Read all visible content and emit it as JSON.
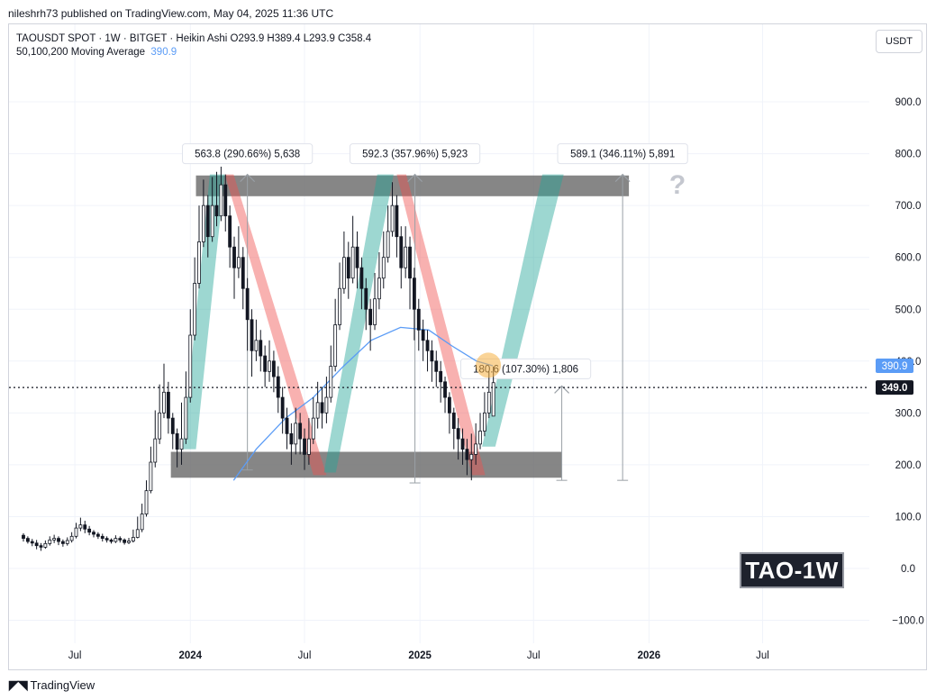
{
  "header": {
    "publisher_line": "nileshrh73 published on TradingView.com, May 04, 2025 11:36 UTC"
  },
  "legend": {
    "symbol_line": "TAOUSDT SPOT · 1W · BITGET · Heikin Ashi  O293.9  H389.4  L293.9  C358.4",
    "ma_label": "50,100,200 Moving Average",
    "ma_value": "390.9"
  },
  "currency_button": "USDT",
  "badge": "TAO-1W",
  "footer": {
    "brand": "TradingView",
    "logo_icon": "tradingview-logo-icon"
  },
  "colors": {
    "bull": "#26a69a",
    "bear": "#ef5350",
    "candle_up": "#ffffff",
    "candle_down": "#131722",
    "ma": "#5b9cf6",
    "zone": "#6b6b6b",
    "highlight": "#f5b041"
  },
  "chart_data": {
    "type": "candlestick",
    "style": "Heikin Ashi",
    "interval": "1W",
    "y_axis": {
      "ticks": [
        "900.0",
        "800.0",
        "700.0",
        "600.0",
        "500.0",
        "400.0",
        "300.0",
        "200.0",
        "100.0",
        "0.0",
        "−100.0"
      ],
      "range": [
        -110,
        1000
      ]
    },
    "x_axis": {
      "ticks": [
        "Jul",
        "2024",
        "Jul",
        "2025",
        "Jul",
        "2026",
        "Jul"
      ]
    },
    "price_labels": {
      "ma_price": "390.9",
      "last_price": "349.0"
    },
    "last_price": 349.0,
    "ma_value": 390.9,
    "zones": [
      {
        "name": "resistance",
        "low": 718,
        "high": 758,
        "x_start": "2024-01-10",
        "x_end": "2025-11-30"
      },
      {
        "name": "support",
        "low": 175,
        "high": 225,
        "x_start": "2023-12-01",
        "x_end": "2025-08-15"
      }
    ],
    "measurements": [
      {
        "label": "563.8 (290.66%) 5,638",
        "x": "2024-04-01",
        "from": 190,
        "to": 760
      },
      {
        "label": "592.3 (357.96%) 5,923",
        "x": "2024-12-24",
        "from": 165,
        "to": 760
      },
      {
        "label": "589.1 (346.11%) 5,891",
        "x": "2025-11-20",
        "from": 170,
        "to": 760
      },
      {
        "label": "180.6 (107.30%) 1,806",
        "x": "2025-08-15",
        "from": 170,
        "to": 352
      }
    ],
    "question_mark": "?",
    "trend_bands": [
      {
        "kind": "up",
        "points": [
          [
            "2023-12-20",
            230
          ],
          [
            "2024-02-01",
            760
          ],
          [
            "2024-02-25",
            760
          ],
          [
            "2024-01-10",
            230
          ]
        ]
      },
      {
        "kind": "down",
        "points": [
          [
            "2024-02-25",
            760
          ],
          [
            "2024-07-15",
            180
          ],
          [
            "2024-08-05",
            180
          ],
          [
            "2024-03-10",
            760
          ]
        ]
      },
      {
        "kind": "up",
        "points": [
          [
            "2024-08-01",
            185
          ],
          [
            "2024-10-25",
            760
          ],
          [
            "2024-11-20",
            760
          ],
          [
            "2024-08-20",
            185
          ]
        ]
      },
      {
        "kind": "down",
        "points": [
          [
            "2024-11-25",
            760
          ],
          [
            "2025-03-25",
            180
          ],
          [
            "2025-04-15",
            180
          ],
          [
            "2024-12-10",
            760
          ]
        ]
      },
      {
        "kind": "up",
        "points": [
          [
            "2025-04-10",
            235
          ],
          [
            "2025-07-15",
            760
          ],
          [
            "2025-08-18",
            760
          ],
          [
            "2025-05-01",
            235
          ]
        ]
      }
    ],
    "highlight_circle": {
      "x": "2025-04-20",
      "y": 392
    },
    "ma_line": [
      [
        "2024-03-10",
        170
      ],
      [
        "2024-04-15",
        230
      ],
      [
        "2024-06-01",
        290
      ],
      [
        "2024-07-15",
        330
      ],
      [
        "2024-09-01",
        390
      ],
      [
        "2024-10-15",
        440
      ],
      [
        "2024-12-01",
        465
      ],
      [
        "2025-01-15",
        460
      ],
      [
        "2025-02-20",
        430
      ],
      [
        "2025-04-01",
        400
      ],
      [
        "2025-04-27",
        391
      ]
    ],
    "candles": [
      [
        "2023-04-10",
        64,
        58,
        68,
        52
      ],
      [
        "2023-04-17",
        58,
        52,
        62,
        48
      ],
      [
        "2023-04-24",
        52,
        49,
        57,
        43
      ],
      [
        "2023-05-01",
        49,
        44,
        55,
        37
      ],
      [
        "2023-05-08",
        44,
        41,
        49,
        34
      ],
      [
        "2023-05-15",
        41,
        48,
        54,
        38
      ],
      [
        "2023-05-22",
        48,
        55,
        62,
        44
      ],
      [
        "2023-05-29",
        55,
        58,
        65,
        49
      ],
      [
        "2023-06-05",
        58,
        52,
        62,
        45
      ],
      [
        "2023-06-12",
        52,
        48,
        56,
        42
      ],
      [
        "2023-06-19",
        48,
        54,
        60,
        44
      ],
      [
        "2023-06-26",
        54,
        62,
        70,
        50
      ],
      [
        "2023-07-03",
        62,
        78,
        88,
        58
      ],
      [
        "2023-07-10",
        78,
        84,
        98,
        72
      ],
      [
        "2023-07-17",
        84,
        76,
        92,
        68
      ],
      [
        "2023-07-24",
        76,
        70,
        82,
        64
      ],
      [
        "2023-07-31",
        70,
        66,
        74,
        60
      ],
      [
        "2023-08-07",
        66,
        62,
        70,
        57
      ],
      [
        "2023-08-14",
        62,
        58,
        67,
        52
      ],
      [
        "2023-08-21",
        58,
        55,
        62,
        50
      ],
      [
        "2023-08-28",
        55,
        52,
        58,
        48
      ],
      [
        "2023-09-04",
        52,
        58,
        64,
        49
      ],
      [
        "2023-09-11",
        58,
        55,
        62,
        50
      ],
      [
        "2023-09-18",
        55,
        50,
        58,
        46
      ],
      [
        "2023-09-25",
        50,
        53,
        59,
        47
      ],
      [
        "2023-10-02",
        53,
        60,
        75,
        50
      ],
      [
        "2023-10-09",
        60,
        75,
        100,
        58
      ],
      [
        "2023-10-16",
        75,
        105,
        125,
        70
      ],
      [
        "2023-10-23",
        105,
        150,
        170,
        100
      ],
      [
        "2023-10-30",
        150,
        205,
        235,
        145
      ],
      [
        "2023-11-06",
        205,
        250,
        305,
        195
      ],
      [
        "2023-11-13",
        250,
        300,
        355,
        240
      ],
      [
        "2023-11-20",
        300,
        340,
        395,
        290
      ],
      [
        "2023-11-27",
        340,
        290,
        360,
        260
      ],
      [
        "2023-12-04",
        290,
        260,
        300,
        230
      ],
      [
        "2023-12-11",
        260,
        230,
        270,
        195
      ],
      [
        "2023-12-18",
        230,
        250,
        320,
        200
      ],
      [
        "2023-12-25",
        250,
        330,
        380,
        240
      ],
      [
        "2024-01-01",
        330,
        450,
        500,
        320
      ],
      [
        "2024-01-08",
        450,
        550,
        600,
        440
      ],
      [
        "2024-01-15",
        550,
        630,
        700,
        540
      ],
      [
        "2024-01-22",
        630,
        700,
        750,
        620
      ],
      [
        "2024-01-29",
        700,
        640,
        720,
        600
      ],
      [
        "2024-02-05",
        640,
        700,
        755,
        630
      ],
      [
        "2024-02-12",
        700,
        680,
        765,
        660
      ],
      [
        "2024-02-19",
        680,
        740,
        775,
        670
      ],
      [
        "2024-02-26",
        740,
        680,
        760,
        650
      ],
      [
        "2024-03-04",
        680,
        620,
        700,
        580
      ],
      [
        "2024-03-11",
        620,
        580,
        640,
        520
      ],
      [
        "2024-03-18",
        580,
        600,
        660,
        560
      ],
      [
        "2024-03-25",
        600,
        540,
        620,
        500
      ],
      [
        "2024-04-01",
        540,
        480,
        560,
        420
      ],
      [
        "2024-04-08",
        480,
        420,
        500,
        370
      ],
      [
        "2024-04-15",
        420,
        440,
        480,
        400
      ],
      [
        "2024-04-22",
        440,
        410,
        460,
        380
      ],
      [
        "2024-04-29",
        410,
        380,
        430,
        350
      ],
      [
        "2024-05-06",
        380,
        400,
        440,
        360
      ],
      [
        "2024-05-13",
        400,
        370,
        420,
        340
      ],
      [
        "2024-05-20",
        370,
        330,
        390,
        300
      ],
      [
        "2024-05-27",
        330,
        290,
        350,
        260
      ],
      [
        "2024-06-03",
        290,
        260,
        310,
        230
      ],
      [
        "2024-06-10",
        260,
        240,
        280,
        200
      ],
      [
        "2024-06-17",
        240,
        280,
        310,
        220
      ],
      [
        "2024-06-24",
        280,
        250,
        300,
        220
      ],
      [
        "2024-07-01",
        250,
        220,
        270,
        190
      ],
      [
        "2024-07-08",
        220,
        250,
        290,
        200
      ],
      [
        "2024-07-15",
        250,
        290,
        330,
        240
      ],
      [
        "2024-07-22",
        290,
        320,
        360,
        270
      ],
      [
        "2024-07-29",
        320,
        300,
        350,
        270
      ],
      [
        "2024-08-05",
        300,
        330,
        370,
        280
      ],
      [
        "2024-08-12",
        330,
        390,
        430,
        320
      ],
      [
        "2024-08-19",
        390,
        470,
        520,
        380
      ],
      [
        "2024-08-26",
        470,
        540,
        590,
        460
      ],
      [
        "2024-09-02",
        540,
        600,
        650,
        530
      ],
      [
        "2024-09-09",
        600,
        560,
        630,
        520
      ],
      [
        "2024-09-16",
        560,
        620,
        680,
        550
      ],
      [
        "2024-09-23",
        620,
        580,
        650,
        540
      ],
      [
        "2024-09-30",
        580,
        540,
        600,
        500
      ],
      [
        "2024-10-07",
        540,
        500,
        560,
        460
      ],
      [
        "2024-10-14",
        500,
        470,
        520,
        420
      ],
      [
        "2024-10-21",
        470,
        520,
        570,
        460
      ],
      [
        "2024-10-28",
        520,
        560,
        610,
        500
      ],
      [
        "2024-11-04",
        560,
        600,
        650,
        540
      ],
      [
        "2024-11-11",
        600,
        650,
        700,
        590
      ],
      [
        "2024-11-18",
        650,
        700,
        745,
        640
      ],
      [
        "2024-11-25",
        700,
        640,
        720,
        600
      ],
      [
        "2024-12-02",
        640,
        580,
        660,
        540
      ],
      [
        "2024-12-09",
        580,
        620,
        660,
        560
      ],
      [
        "2024-12-16",
        620,
        560,
        640,
        500
      ],
      [
        "2024-12-23",
        560,
        500,
        580,
        440
      ],
      [
        "2024-12-30",
        500,
        460,
        520,
        420
      ],
      [
        "2025-01-06",
        460,
        440,
        480,
        400
      ],
      [
        "2025-01-13",
        440,
        420,
        460,
        380
      ],
      [
        "2025-01-20",
        420,
        400,
        440,
        360
      ],
      [
        "2025-01-27",
        400,
        380,
        420,
        350
      ],
      [
        "2025-02-03",
        380,
        360,
        400,
        320
      ],
      [
        "2025-02-10",
        360,
        330,
        370,
        300
      ],
      [
        "2025-02-17",
        330,
        300,
        340,
        260
      ],
      [
        "2025-02-24",
        300,
        270,
        310,
        230
      ],
      [
        "2025-03-03",
        270,
        250,
        290,
        210
      ],
      [
        "2025-03-10",
        250,
        230,
        270,
        200
      ],
      [
        "2025-03-17",
        230,
        210,
        250,
        180
      ],
      [
        "2025-03-24",
        210,
        220,
        260,
        170
      ],
      [
        "2025-03-31",
        220,
        240,
        280,
        200
      ],
      [
        "2025-04-07",
        240,
        265,
        300,
        230
      ],
      [
        "2025-04-14",
        265,
        300,
        340,
        255
      ],
      [
        "2025-04-21",
        300,
        340,
        380,
        290
      ],
      [
        "2025-04-28",
        293.9,
        358.4,
        389.4,
        293.9
      ]
    ]
  }
}
